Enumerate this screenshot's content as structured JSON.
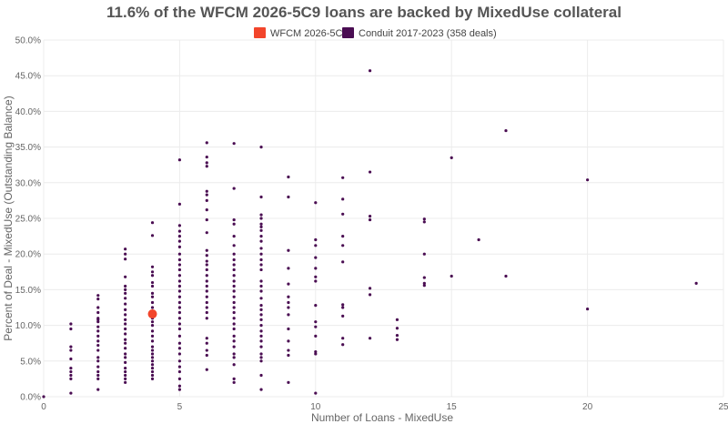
{
  "chart_data": {
    "type": "scatter",
    "title": "11.6% of the WFCM 2026-5C9 loans are backed by MixedUse collateral",
    "xlabel": "Number of Loans - MixedUse",
    "ylabel": "Percent of Deal - MixedUse (Outstanding Balance)",
    "xlim": [
      0,
      25
    ],
    "ylim": [
      0,
      50
    ],
    "x_ticks": [
      0,
      5,
      10,
      15,
      20,
      25
    ],
    "y_ticks": [
      0,
      5,
      10,
      15,
      20,
      25,
      30,
      35,
      40,
      45,
      50
    ],
    "y_tick_labels": [
      "0.0%",
      "5.0%",
      "10.0%",
      "15.0%",
      "20.0%",
      "25.0%",
      "30.0%",
      "35.0%",
      "40.0%",
      "45.0%",
      "50.0%"
    ],
    "grid": true,
    "legend_position": "top-center",
    "series": [
      {
        "name": "WFCM 2026-5C9",
        "color": "#f2452b",
        "marker": "large-circle",
        "points": [
          [
            4,
            11.6
          ]
        ]
      },
      {
        "name": "Conduit 2017-2023 (358 deals)",
        "color": "#4a0d52",
        "marker": "small-circle",
        "points": [
          [
            0,
            0
          ],
          [
            1,
            10.2
          ],
          [
            1,
            9.5
          ],
          [
            1,
            7.0
          ],
          [
            1,
            6.5
          ],
          [
            1,
            5.3
          ],
          [
            1,
            4.0
          ],
          [
            1,
            3.5
          ],
          [
            1,
            3.0
          ],
          [
            1,
            2.5
          ],
          [
            1,
            0.5
          ],
          [
            2,
            14.2
          ],
          [
            2,
            13.7
          ],
          [
            2,
            12.5
          ],
          [
            2,
            11.8
          ],
          [
            2,
            11.0
          ],
          [
            2,
            10.8
          ],
          [
            2,
            10.5
          ],
          [
            2,
            9.8
          ],
          [
            2,
            9.2
          ],
          [
            2,
            8.5
          ],
          [
            2,
            7.8
          ],
          [
            2,
            7.2
          ],
          [
            2,
            6.5
          ],
          [
            2,
            5.5
          ],
          [
            2,
            5.0
          ],
          [
            2,
            4.2
          ],
          [
            2,
            3.5
          ],
          [
            2,
            3.0
          ],
          [
            2,
            2.5
          ],
          [
            2,
            1.0
          ],
          [
            3,
            20.7
          ],
          [
            3,
            20.0
          ],
          [
            3,
            19.3
          ],
          [
            3,
            16.8
          ],
          [
            3,
            15.5
          ],
          [
            3,
            15.0
          ],
          [
            3,
            14.5
          ],
          [
            3,
            13.8
          ],
          [
            3,
            13.0
          ],
          [
            3,
            12.2
          ],
          [
            3,
            11.5
          ],
          [
            3,
            10.8
          ],
          [
            3,
            10.2
          ],
          [
            3,
            9.5
          ],
          [
            3,
            8.8
          ],
          [
            3,
            8.0
          ],
          [
            3,
            7.5
          ],
          [
            3,
            6.8
          ],
          [
            3,
            6.0
          ],
          [
            3,
            5.5
          ],
          [
            3,
            4.8
          ],
          [
            3,
            4.0
          ],
          [
            3,
            3.5
          ],
          [
            3,
            3.0
          ],
          [
            3,
            2.5
          ],
          [
            3,
            2.0
          ],
          [
            4,
            24.4
          ],
          [
            4,
            22.6
          ],
          [
            4,
            18.2
          ],
          [
            4,
            17.5
          ],
          [
            4,
            17.0
          ],
          [
            4,
            16.0
          ],
          [
            4,
            15.5
          ],
          [
            4,
            14.5
          ],
          [
            4,
            14.0
          ],
          [
            4,
            13.2
          ],
          [
            4,
            12.5
          ],
          [
            4,
            12.0
          ],
          [
            4,
            11.0
          ],
          [
            4,
            10.5
          ],
          [
            4,
            10.0
          ],
          [
            4,
            9.2
          ],
          [
            4,
            8.5
          ],
          [
            4,
            7.8
          ],
          [
            4,
            7.0
          ],
          [
            4,
            6.5
          ],
          [
            4,
            6.0
          ],
          [
            4,
            5.5
          ],
          [
            4,
            5.0
          ],
          [
            4,
            4.5
          ],
          [
            4,
            4.0
          ],
          [
            4,
            3.5
          ],
          [
            4,
            3.0
          ],
          [
            4,
            2.5
          ],
          [
            5,
            33.2
          ],
          [
            5,
            27.0
          ],
          [
            5,
            24.0
          ],
          [
            5,
            23.2
          ],
          [
            5,
            22.5
          ],
          [
            5,
            21.8
          ],
          [
            5,
            21.0
          ],
          [
            5,
            20.0
          ],
          [
            5,
            19.2
          ],
          [
            5,
            18.5
          ],
          [
            5,
            17.8
          ],
          [
            5,
            17.0
          ],
          [
            5,
            16.2
          ],
          [
            5,
            15.5
          ],
          [
            5,
            14.8
          ],
          [
            5,
            14.0
          ],
          [
            5,
            13.2
          ],
          [
            5,
            12.5
          ],
          [
            5,
            11.8
          ],
          [
            5,
            11.0
          ],
          [
            5,
            10.2
          ],
          [
            5,
            9.5
          ],
          [
            5,
            8.5
          ],
          [
            5,
            7.5
          ],
          [
            5,
            6.8
          ],
          [
            5,
            6.0
          ],
          [
            5,
            5.0
          ],
          [
            5,
            4.2
          ],
          [
            5,
            3.5
          ],
          [
            5,
            2.5
          ],
          [
            5,
            1.5
          ],
          [
            5,
            1.0
          ],
          [
            6,
            35.6
          ],
          [
            6,
            33.6
          ],
          [
            6,
            32.8
          ],
          [
            6,
            32.3
          ],
          [
            6,
            28.8
          ],
          [
            6,
            28.3
          ],
          [
            6,
            27.5
          ],
          [
            6,
            26.2
          ],
          [
            6,
            24.8
          ],
          [
            6,
            23.0
          ],
          [
            6,
            20.5
          ],
          [
            6,
            19.8
          ],
          [
            6,
            19.0
          ],
          [
            6,
            18.5
          ],
          [
            6,
            17.8
          ],
          [
            6,
            17.0
          ],
          [
            6,
            16.2
          ],
          [
            6,
            15.5
          ],
          [
            6,
            14.8
          ],
          [
            6,
            14.0
          ],
          [
            6,
            13.2
          ],
          [
            6,
            12.5
          ],
          [
            6,
            11.8
          ],
          [
            6,
            11.0
          ],
          [
            6,
            8.2
          ],
          [
            6,
            7.5
          ],
          [
            6,
            6.5
          ],
          [
            6,
            5.8
          ],
          [
            6,
            3.8
          ],
          [
            7,
            35.5
          ],
          [
            7,
            29.2
          ],
          [
            7,
            24.8
          ],
          [
            7,
            24.2
          ],
          [
            7,
            22.5
          ],
          [
            7,
            21.2
          ],
          [
            7,
            20.0
          ],
          [
            7,
            19.2
          ],
          [
            7,
            18.5
          ],
          [
            7,
            17.8
          ],
          [
            7,
            17.0
          ],
          [
            7,
            16.2
          ],
          [
            7,
            15.5
          ],
          [
            7,
            14.8
          ],
          [
            7,
            14.0
          ],
          [
            7,
            13.2
          ],
          [
            7,
            12.5
          ],
          [
            7,
            11.8
          ],
          [
            7,
            11.0
          ],
          [
            7,
            10.2
          ],
          [
            7,
            9.5
          ],
          [
            7,
            8.5
          ],
          [
            7,
            7.8
          ],
          [
            7,
            7.0
          ],
          [
            7,
            6.0
          ],
          [
            7,
            5.5
          ],
          [
            7,
            4.5
          ],
          [
            7,
            2.5
          ],
          [
            7,
            2.0
          ],
          [
            8,
            35.0
          ],
          [
            8,
            28.0
          ],
          [
            8,
            25.5
          ],
          [
            8,
            25.0
          ],
          [
            8,
            24.2
          ],
          [
            8,
            23.8
          ],
          [
            8,
            23.3
          ],
          [
            8,
            22.5
          ],
          [
            8,
            21.8
          ],
          [
            8,
            20.8
          ],
          [
            8,
            20.0
          ],
          [
            8,
            19.2
          ],
          [
            8,
            18.5
          ],
          [
            8,
            17.8
          ],
          [
            8,
            16.2
          ],
          [
            8,
            15.5
          ],
          [
            8,
            14.8
          ],
          [
            8,
            13.8
          ],
          [
            8,
            12.8
          ],
          [
            8,
            12.2
          ],
          [
            8,
            11.5
          ],
          [
            8,
            10.8
          ],
          [
            8,
            10.0
          ],
          [
            8,
            9.2
          ],
          [
            8,
            8.5
          ],
          [
            8,
            7.8
          ],
          [
            8,
            7.0
          ],
          [
            8,
            6.0
          ],
          [
            8,
            5.5
          ],
          [
            8,
            5.0
          ],
          [
            8,
            3.0
          ],
          [
            8,
            1.0
          ],
          [
            9,
            30.8
          ],
          [
            9,
            28.0
          ],
          [
            9,
            20.5
          ],
          [
            9,
            18.0
          ],
          [
            9,
            15.8
          ],
          [
            9,
            14.0
          ],
          [
            9,
            13.2
          ],
          [
            9,
            12.5
          ],
          [
            9,
            11.5
          ],
          [
            9,
            9.5
          ],
          [
            9,
            7.8
          ],
          [
            9,
            6.5
          ],
          [
            9,
            5.8
          ],
          [
            9,
            2.0
          ],
          [
            10,
            27.2
          ],
          [
            10,
            22.0
          ],
          [
            10,
            21.2
          ],
          [
            10,
            19.5
          ],
          [
            10,
            18.0
          ],
          [
            10,
            16.8
          ],
          [
            10,
            16.2
          ],
          [
            10,
            12.8
          ],
          [
            10,
            10.5
          ],
          [
            10,
            9.8
          ],
          [
            10,
            8.5
          ],
          [
            10,
            6.3
          ],
          [
            10,
            6.0
          ],
          [
            10,
            0.5
          ],
          [
            11,
            30.7
          ],
          [
            11,
            27.7
          ],
          [
            11,
            25.6
          ],
          [
            11,
            22.5
          ],
          [
            11,
            21.2
          ],
          [
            11,
            18.9
          ],
          [
            11,
            12.9
          ],
          [
            11,
            12.5
          ],
          [
            11,
            11.3
          ],
          [
            11,
            8.2
          ],
          [
            11,
            7.3
          ],
          [
            12,
            45.7
          ],
          [
            12,
            31.5
          ],
          [
            12,
            25.3
          ],
          [
            12,
            24.8
          ],
          [
            12,
            15.2
          ],
          [
            12,
            14.3
          ],
          [
            12,
            8.2
          ],
          [
            13,
            10.8
          ],
          [
            13,
            9.6
          ],
          [
            13,
            8.6
          ],
          [
            13,
            8.0
          ],
          [
            14,
            24.9
          ],
          [
            14,
            24.5
          ],
          [
            14,
            20.0
          ],
          [
            14,
            16.7
          ],
          [
            14,
            15.9
          ],
          [
            14,
            15.6
          ],
          [
            15,
            33.5
          ],
          [
            15,
            16.9
          ],
          [
            16,
            22.0
          ],
          [
            17,
            37.3
          ],
          [
            17,
            16.9
          ],
          [
            20,
            30.4
          ],
          [
            20,
            12.3
          ],
          [
            24,
            15.9
          ]
        ]
      }
    ]
  }
}
